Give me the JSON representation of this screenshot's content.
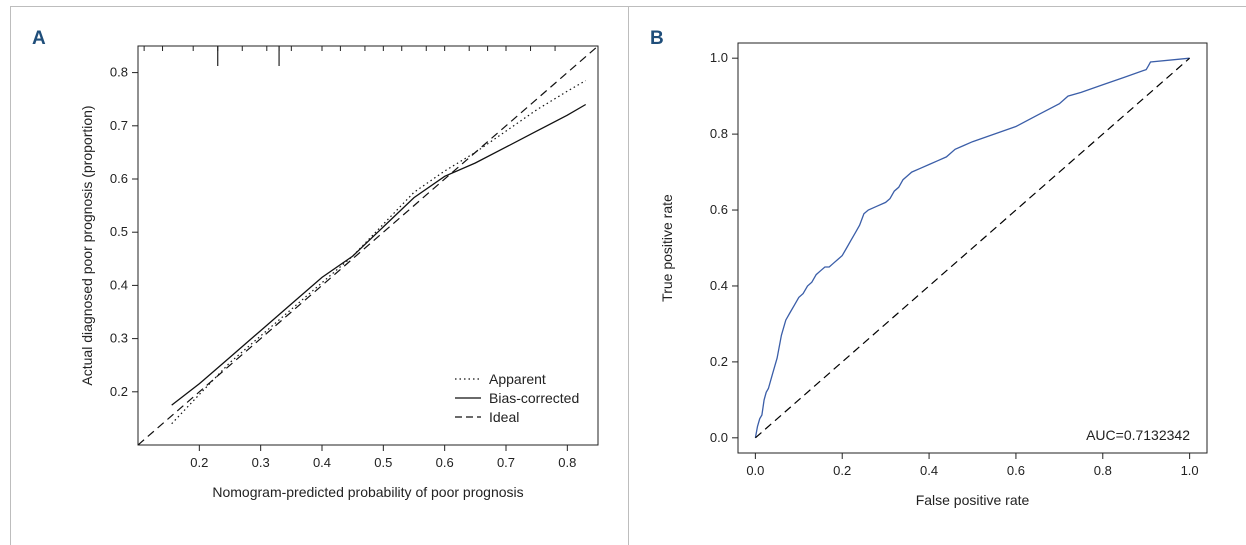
{
  "panels": {
    "a_label": "A",
    "b_label": "B"
  },
  "chart_data": [
    {
      "type": "line",
      "panel": "A",
      "xlabel": "Nomogram-predicted probability of poor prognosis",
      "ylabel": "Actual diagnosed poor prognosis (proportion)",
      "xlim": [
        0.1,
        0.85
      ],
      "ylim": [
        0.1,
        0.85
      ],
      "x_ticks": [
        0.2,
        0.3,
        0.4,
        0.5,
        0.6,
        0.7,
        0.8
      ],
      "y_ticks": [
        0.2,
        0.3,
        0.4,
        0.5,
        0.6,
        0.7,
        0.8
      ],
      "rug": [
        0.11,
        0.14,
        0.19,
        0.23,
        0.27,
        0.31,
        0.33,
        0.35,
        0.4,
        0.43,
        0.47,
        0.5,
        0.53,
        0.57,
        0.6,
        0.64,
        0.67,
        0.7,
        0.74,
        0.78
      ],
      "rug_long": [
        0.23,
        0.33
      ],
      "legend": {
        "position": "bottom-right",
        "entries": [
          "Apparent",
          "Bias-corrected",
          "Ideal"
        ]
      },
      "series": [
        {
          "name": "Apparent",
          "style": "dotted",
          "x": [
            0.155,
            0.2,
            0.25,
            0.3,
            0.35,
            0.4,
            0.45,
            0.5,
            0.55,
            0.6,
            0.65,
            0.7,
            0.75,
            0.8,
            0.83
          ],
          "y": [
            0.14,
            0.195,
            0.255,
            0.305,
            0.355,
            0.405,
            0.455,
            0.515,
            0.575,
            0.615,
            0.65,
            0.69,
            0.73,
            0.765,
            0.785
          ]
        },
        {
          "name": "Bias-corrected",
          "style": "solid",
          "x": [
            0.155,
            0.2,
            0.25,
            0.3,
            0.35,
            0.4,
            0.45,
            0.5,
            0.55,
            0.6,
            0.65,
            0.7,
            0.75,
            0.8,
            0.83
          ],
          "y": [
            0.175,
            0.215,
            0.265,
            0.315,
            0.365,
            0.415,
            0.455,
            0.51,
            0.565,
            0.605,
            0.63,
            0.66,
            0.69,
            0.72,
            0.74
          ]
        },
        {
          "name": "Ideal",
          "style": "dashed",
          "x": [
            0.1,
            0.85
          ],
          "y": [
            0.1,
            0.85
          ]
        }
      ]
    },
    {
      "type": "line",
      "panel": "B",
      "xlabel": "False positive rate",
      "ylabel": "True positive rate",
      "xlim": [
        -0.04,
        1.04
      ],
      "ylim": [
        -0.04,
        1.04
      ],
      "x_ticks": [
        0.0,
        0.2,
        0.4,
        0.6,
        0.8,
        1.0
      ],
      "y_ticks": [
        0.0,
        0.2,
        0.4,
        0.6,
        0.8,
        1.0
      ],
      "annotation": "AUC=0.7132342",
      "series": [
        {
          "name": "",
          "style": "solid",
          "color": "#3b5ea8",
          "x": [
            0.0,
            0.005,
            0.01,
            0.015,
            0.02,
            0.025,
            0.03,
            0.04,
            0.05,
            0.06,
            0.065,
            0.07,
            0.08,
            0.09,
            0.1,
            0.11,
            0.12,
            0.13,
            0.14,
            0.15,
            0.16,
            0.17,
            0.18,
            0.19,
            0.2,
            0.21,
            0.22,
            0.23,
            0.24,
            0.25,
            0.26,
            0.28,
            0.3,
            0.31,
            0.32,
            0.33,
            0.34,
            0.35,
            0.36,
            0.38,
            0.4,
            0.42,
            0.44,
            0.46,
            0.48,
            0.5,
            0.55,
            0.6,
            0.65,
            0.7,
            0.72,
            0.75,
            0.8,
            0.85,
            0.9,
            0.905,
            0.91,
            1.0
          ],
          "y": [
            0.0,
            0.03,
            0.05,
            0.06,
            0.1,
            0.12,
            0.13,
            0.17,
            0.21,
            0.27,
            0.29,
            0.31,
            0.33,
            0.35,
            0.37,
            0.38,
            0.4,
            0.41,
            0.43,
            0.44,
            0.45,
            0.45,
            0.46,
            0.47,
            0.48,
            0.5,
            0.52,
            0.54,
            0.56,
            0.59,
            0.6,
            0.61,
            0.62,
            0.63,
            0.65,
            0.66,
            0.68,
            0.69,
            0.7,
            0.71,
            0.72,
            0.73,
            0.74,
            0.76,
            0.77,
            0.78,
            0.8,
            0.82,
            0.85,
            0.88,
            0.9,
            0.91,
            0.93,
            0.95,
            0.97,
            0.98,
            0.99,
            1.0
          ]
        },
        {
          "name": "",
          "style": "dashed",
          "color": "#000000",
          "x": [
            0.0,
            1.0
          ],
          "y": [
            0.0,
            1.0
          ]
        }
      ]
    }
  ]
}
